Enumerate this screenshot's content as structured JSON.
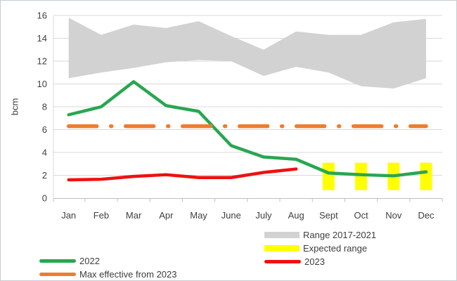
{
  "colors": {
    "band": "#d2d2d2",
    "green": "#28a74f",
    "red": "#ee1111",
    "orange": "#ed7d31",
    "yellow": "#ffff00",
    "grid": "#d9d9d9",
    "axis_line": "#bfbfbf",
    "axis_text": "#404040"
  },
  "chart_data": {
    "type": "combo",
    "title": "",
    "xlabel": "",
    "ylabel": "bcm",
    "ylim": [
      0,
      16
    ],
    "yticks": [
      0,
      2,
      4,
      6,
      8,
      10,
      12,
      14,
      16
    ],
    "grid": true,
    "legend_position": "bottom",
    "categories": [
      "Jan",
      "Feb",
      "Mar",
      "Apr",
      "May",
      "June",
      "July",
      "Aug",
      "Sept",
      "Oct",
      "Nov",
      "Dec"
    ],
    "series": [
      {
        "name": "Range 2017-2021",
        "type": "area-band",
        "color": "band",
        "upper": [
          15.8,
          14.3,
          15.2,
          14.9,
          15.5,
          14.2,
          13.0,
          14.6,
          14.3,
          14.3,
          15.4,
          15.7
        ],
        "lower": [
          10.5,
          11.0,
          11.4,
          11.9,
          12.1,
          12.0,
          10.7,
          11.5,
          11.0,
          9.8,
          9.6,
          10.5
        ]
      },
      {
        "name": "Expected range",
        "type": "bar-range",
        "color": "yellow",
        "low": 0.7,
        "high": 3.1,
        "months": [
          "Sept",
          "Oct",
          "Nov",
          "Dec"
        ]
      },
      {
        "name": "2022",
        "type": "line",
        "color": "green",
        "values": [
          7.3,
          8.0,
          10.2,
          8.1,
          7.6,
          4.6,
          3.6,
          3.4,
          2.2,
          2.05,
          1.95,
          2.3
        ]
      },
      {
        "name": "2023",
        "type": "line",
        "color": "red",
        "values": [
          1.6,
          1.65,
          1.9,
          2.05,
          1.8,
          1.8,
          2.25,
          2.55
        ]
      },
      {
        "name": "Max effective from 2023",
        "type": "hline-dashdot",
        "color": "orange",
        "value": 6.3
      }
    ],
    "legend": {
      "left": [
        {
          "label": "2022",
          "swatch": "line",
          "color": "green"
        },
        {
          "label": "Max effective from 2023",
          "swatch": "line",
          "color": "orange"
        }
      ],
      "right": [
        {
          "label": "Range 2017-2021",
          "swatch": "box",
          "color": "band"
        },
        {
          "label": "Expected range",
          "swatch": "box",
          "color": "yellow"
        },
        {
          "label": "2023",
          "swatch": "line",
          "color": "red"
        }
      ]
    }
  }
}
